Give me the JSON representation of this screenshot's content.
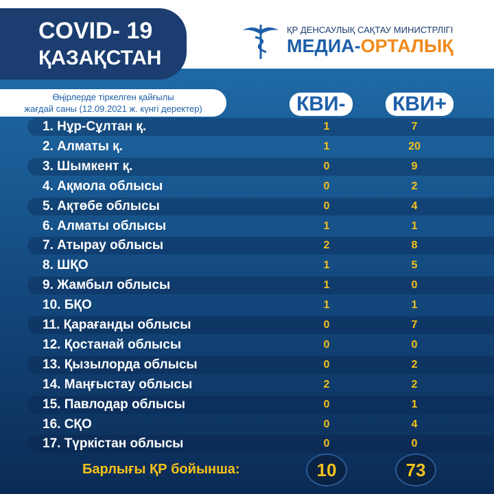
{
  "header": {
    "title_line1": "COVID- 19",
    "title_line2": "ҚАЗАҚСТАН",
    "ministry": "ҚР ДЕНСАУЛЫҚ САҚТАУ МИНИСТРЛІГІ",
    "media": "МЕДИА-ОРТАЛЫҚ"
  },
  "subtitle": {
    "line1": "Өңірлерде тіркелген қайғылы",
    "line2": "жағдай саны (12.09.2021 ж. күнгі деректер)"
  },
  "table": {
    "columns": [
      "КВИ-",
      "КВИ+"
    ],
    "rows": [
      [
        "1. Нұр-Сұлтан қ.",
        1,
        7
      ],
      [
        "2. Алматы қ.",
        1,
        20
      ],
      [
        "3. Шымкент қ.",
        0,
        9
      ],
      [
        "4. Ақмола облысы",
        0,
        2
      ],
      [
        "5. Ақтөбе облысы",
        0,
        4
      ],
      [
        "6. Алматы облысы",
        1,
        1
      ],
      [
        "7. Атырау облысы",
        2,
        8
      ],
      [
        "8. ШҚО",
        1,
        5
      ],
      [
        "9. Жамбыл облысы",
        1,
        0
      ],
      [
        "10. БҚО",
        1,
        1
      ],
      [
        "11. Қарағанды облысы",
        0,
        7
      ],
      [
        "12. Қостанай облысы",
        0,
        0
      ],
      [
        "13. Қызылорда облысы",
        0,
        2
      ],
      [
        "14. Маңғыстау облысы",
        2,
        2
      ],
      [
        "15. Павлодар облысы",
        0,
        1
      ],
      [
        "16. СҚО",
        0,
        4
      ],
      [
        "17. Түркістан облысы",
        0,
        0
      ]
    ],
    "total": {
      "label": "Барлығы ҚР бойынша:",
      "values": [
        10,
        73
      ]
    }
  }
}
